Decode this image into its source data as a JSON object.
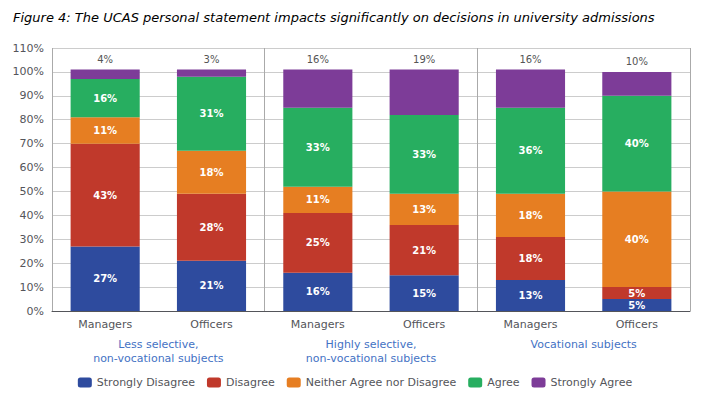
{
  "chart_data": {
    "type": "bar",
    "title": "Figure 4: The UCAS personal statement impacts significantly on decisions in university admissions",
    "categories": [
      "Managers",
      "Officers",
      "Managers",
      "Officers",
      "Managers",
      "Officers"
    ],
    "annotations": [
      {
        "text": "Less selective,\nnon-vocational subjects"
      },
      {
        "text": "Highly selective,\nnon-vocational subjects"
      },
      {
        "text": "Vocational subjects"
      }
    ],
    "series": [
      {
        "name": "Strongly Disagree",
        "color": "#2E4B9E",
        "values": [
          27,
          21,
          16,
          15,
          13,
          5
        ],
        "value_labels": [
          "27%",
          "21%",
          "16%",
          "15%",
          "13%",
          "5%"
        ]
      },
      {
        "name": "Disagree",
        "color": "#C0392B",
        "values": [
          43,
          28,
          25,
          21,
          18,
          5
        ],
        "value_labels": [
          "43%",
          "28%",
          "25%",
          "21%",
          "18%",
          "5%"
        ]
      },
      {
        "name": "Neither Agree nor Disagree",
        "color": "#E67E22",
        "values": [
          11,
          18,
          11,
          13,
          18,
          40
        ],
        "value_labels": [
          "11%",
          "18%",
          "11%",
          "13%",
          "18%",
          "40%"
        ]
      },
      {
        "name": "Agree",
        "color": "#27AE60",
        "values": [
          16,
          31,
          33,
          33,
          36,
          40
        ],
        "value_labels": [
          "16%",
          "31%",
          "33%",
          "33%",
          "36%",
          "40%"
        ]
      },
      {
        "name": "Strongly Agree",
        "color": "#7D3C98",
        "values": [
          4,
          3,
          16,
          19,
          16,
          10
        ],
        "value_labels": [
          "4%",
          "3%",
          "16%",
          "19%",
          "16%",
          "10%"
        ]
      }
    ],
    "stacked": true,
    "data_labels": true,
    "ylim": [
      0,
      110
    ],
    "yticks": [
      {
        "value": 0,
        "label": "0%"
      },
      {
        "value": 10,
        "label": "10%"
      },
      {
        "value": 20,
        "label": "20%"
      },
      {
        "value": 30,
        "label": "30%"
      },
      {
        "value": 40,
        "label": "40%"
      },
      {
        "value": 50,
        "label": "50%"
      },
      {
        "value": 60,
        "label": "60%"
      },
      {
        "value": 70,
        "label": "70%"
      },
      {
        "value": 80,
        "label": "80%"
      },
      {
        "value": 90,
        "label": "90%"
      },
      {
        "value": 100,
        "label": "100%"
      },
      {
        "value": 110,
        "label": "110%"
      }
    ],
    "grid": true,
    "legend": "bottom"
  }
}
